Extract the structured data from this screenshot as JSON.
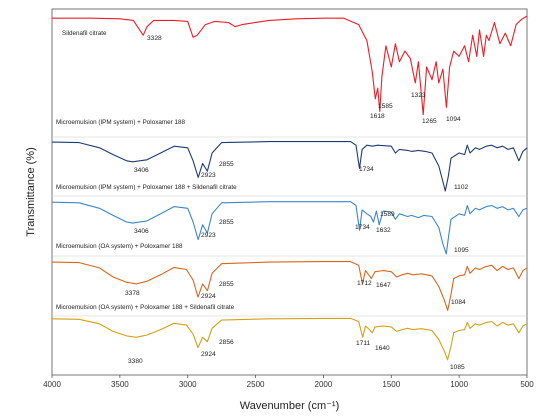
{
  "chart_data": {
    "type": "line",
    "xlabel": "Wavenumber (cm⁻¹)",
    "ylabel": "Transmittance (%)",
    "xlim": [
      4000,
      500
    ],
    "x_reversed": true,
    "x_ticks": [
      "4000",
      "3500",
      "3000",
      "2500",
      "2000",
      "1500",
      "1000",
      "500"
    ],
    "y_ticks_shown": false,
    "grid": false,
    "stacked_offset_spectra": true,
    "series": [
      {
        "name": "Sildenafil citrate",
        "color": "#ee1c25",
        "peaks": [
          "3328",
          "1618",
          "1585",
          "1323",
          "1265",
          "1094"
        ],
        "points": [
          [
            4000,
            0.96
          ],
          [
            3700,
            0.96
          ],
          [
            3500,
            0.955
          ],
          [
            3400,
            0.94
          ],
          [
            3360,
            0.86
          ],
          [
            3328,
            0.8
          ],
          [
            3300,
            0.88
          ],
          [
            3250,
            0.94
          ],
          [
            3100,
            0.94
          ],
          [
            3000,
            0.93
          ],
          [
            2960,
            0.78
          ],
          [
            2930,
            0.8
          ],
          [
            2870,
            0.9
          ],
          [
            2800,
            0.93
          ],
          [
            2700,
            0.92
          ],
          [
            2650,
            0.88
          ],
          [
            2600,
            0.9
          ],
          [
            2400,
            0.94
          ],
          [
            2200,
            0.955
          ],
          [
            2000,
            0.96
          ],
          [
            1850,
            0.96
          ],
          [
            1740,
            0.9
          ],
          [
            1700,
            0.8
          ],
          [
            1680,
            0.75
          ],
          [
            1660,
            0.6
          ],
          [
            1640,
            0.45
          ],
          [
            1618,
            0.2
          ],
          [
            1600,
            0.3
          ],
          [
            1585,
            0.08
          ],
          [
            1570,
            0.4
          ],
          [
            1540,
            0.7
          ],
          [
            1500,
            0.5
          ],
          [
            1470,
            0.72
          ],
          [
            1440,
            0.55
          ],
          [
            1400,
            0.65
          ],
          [
            1360,
            0.58
          ],
          [
            1323,
            0.35
          ],
          [
            1300,
            0.55
          ],
          [
            1265,
            0.05
          ],
          [
            1240,
            0.5
          ],
          [
            1200,
            0.38
          ],
          [
            1170,
            0.55
          ],
          [
            1150,
            0.35
          ],
          [
            1120,
            0.48
          ],
          [
            1094,
            0.12
          ],
          [
            1070,
            0.5
          ],
          [
            1040,
            0.65
          ],
          [
            1000,
            0.6
          ],
          [
            960,
            0.7
          ],
          [
            930,
            0.55
          ],
          [
            900,
            0.8
          ],
          [
            870,
            0.6
          ],
          [
            850,
            0.85
          ],
          [
            820,
            0.6
          ],
          [
            800,
            0.8
          ],
          [
            780,
            0.75
          ],
          [
            740,
            0.92
          ],
          [
            700,
            0.72
          ],
          [
            660,
            0.82
          ],
          [
            620,
            0.7
          ],
          [
            580,
            0.9
          ],
          [
            540,
            0.95
          ],
          [
            500,
            0.98
          ]
        ]
      },
      {
        "name": "Microemulsion (IPM system) + Poloxamer 188",
        "color": "#1f3b73",
        "peaks": [
          "3406",
          "2923",
          "2855",
          "1734",
          "1102"
        ],
        "points": [
          [
            4000,
            0.96
          ],
          [
            3800,
            0.95
          ],
          [
            3650,
            0.85
          ],
          [
            3550,
            0.72
          ],
          [
            3450,
            0.6
          ],
          [
            3406,
            0.58
          ],
          [
            3300,
            0.62
          ],
          [
            3200,
            0.75
          ],
          [
            3100,
            0.88
          ],
          [
            3000,
            0.85
          ],
          [
            2960,
            0.6
          ],
          [
            2923,
            0.28
          ],
          [
            2890,
            0.55
          ],
          [
            2855,
            0.4
          ],
          [
            2820,
            0.75
          ],
          [
            2750,
            0.95
          ],
          [
            2400,
            0.97
          ],
          [
            2000,
            0.97
          ],
          [
            1800,
            0.97
          ],
          [
            1760,
            0.9
          ],
          [
            1734,
            0.45
          ],
          [
            1715,
            0.82
          ],
          [
            1680,
            0.9
          ],
          [
            1640,
            0.88
          ],
          [
            1600,
            0.9
          ],
          [
            1500,
            0.88
          ],
          [
            1470,
            0.75
          ],
          [
            1440,
            0.82
          ],
          [
            1380,
            0.8
          ],
          [
            1350,
            0.78
          ],
          [
            1300,
            0.8
          ],
          [
            1250,
            0.78
          ],
          [
            1200,
            0.75
          ],
          [
            1150,
            0.5
          ],
          [
            1120,
            0.2
          ],
          [
            1102,
            0.02
          ],
          [
            1080,
            0.3
          ],
          [
            1060,
            0.65
          ],
          [
            1000,
            0.75
          ],
          [
            960,
            0.72
          ],
          [
            940,
            0.9
          ],
          [
            920,
            0.75
          ],
          [
            880,
            0.85
          ],
          [
            850,
            0.82
          ],
          [
            800,
            0.88
          ],
          [
            760,
            0.9
          ],
          [
            720,
            0.85
          ],
          [
            680,
            0.88
          ],
          [
            640,
            0.82
          ],
          [
            600,
            0.85
          ],
          [
            560,
            0.6
          ],
          [
            530,
            0.78
          ],
          [
            500,
            0.85
          ]
        ]
      },
      {
        "name": "Microemulsion (IPM system) + Poloxamer 188 + Sildenafil citrate",
        "color": "#3f86c8",
        "peaks": [
          "3406",
          "2923",
          "2855",
          "1734",
          "1632",
          "1589",
          "1095"
        ],
        "points": [
          [
            4000,
            0.96
          ],
          [
            3800,
            0.95
          ],
          [
            3650,
            0.85
          ],
          [
            3550,
            0.72
          ],
          [
            3450,
            0.6
          ],
          [
            3406,
            0.58
          ],
          [
            3300,
            0.62
          ],
          [
            3200,
            0.75
          ],
          [
            3100,
            0.88
          ],
          [
            3000,
            0.85
          ],
          [
            2960,
            0.6
          ],
          [
            2923,
            0.28
          ],
          [
            2890,
            0.55
          ],
          [
            2855,
            0.4
          ],
          [
            2820,
            0.75
          ],
          [
            2750,
            0.95
          ],
          [
            2400,
            0.97
          ],
          [
            2000,
            0.97
          ],
          [
            1800,
            0.97
          ],
          [
            1760,
            0.9
          ],
          [
            1734,
            0.45
          ],
          [
            1715,
            0.82
          ],
          [
            1680,
            0.75
          ],
          [
            1650,
            0.7
          ],
          [
            1632,
            0.6
          ],
          [
            1610,
            0.8
          ],
          [
            1589,
            0.55
          ],
          [
            1560,
            0.8
          ],
          [
            1500,
            0.78
          ],
          [
            1470,
            0.65
          ],
          [
            1440,
            0.75
          ],
          [
            1380,
            0.7
          ],
          [
            1350,
            0.72
          ],
          [
            1300,
            0.68
          ],
          [
            1260,
            0.72
          ],
          [
            1200,
            0.7
          ],
          [
            1150,
            0.5
          ],
          [
            1120,
            0.2
          ],
          [
            1095,
            0.02
          ],
          [
            1080,
            0.3
          ],
          [
            1060,
            0.65
          ],
          [
            1000,
            0.75
          ],
          [
            960,
            0.72
          ],
          [
            940,
            0.9
          ],
          [
            920,
            0.75
          ],
          [
            880,
            0.85
          ],
          [
            850,
            0.82
          ],
          [
            800,
            0.88
          ],
          [
            760,
            0.9
          ],
          [
            720,
            0.85
          ],
          [
            680,
            0.88
          ],
          [
            640,
            0.82
          ],
          [
            600,
            0.85
          ],
          [
            560,
            0.7
          ],
          [
            530,
            0.82
          ],
          [
            500,
            0.85
          ]
        ]
      },
      {
        "name": "Microemulsion (OA system) + Poloxamer 188",
        "color": "#d9661f",
        "peaks": [
          "3378",
          "2924",
          "2855",
          "1712",
          "1647",
          "1084"
        ],
        "points": [
          [
            4000,
            0.96
          ],
          [
            3800,
            0.95
          ],
          [
            3650,
            0.85
          ],
          [
            3550,
            0.68
          ],
          [
            3450,
            0.58
          ],
          [
            3378,
            0.55
          ],
          [
            3300,
            0.6
          ],
          [
            3200,
            0.72
          ],
          [
            3100,
            0.86
          ],
          [
            3010,
            0.82
          ],
          [
            2960,
            0.62
          ],
          [
            2924,
            0.3
          ],
          [
            2890,
            0.55
          ],
          [
            2855,
            0.42
          ],
          [
            2820,
            0.75
          ],
          [
            2750,
            0.93
          ],
          [
            2400,
            0.96
          ],
          [
            2000,
            0.97
          ],
          [
            1800,
            0.97
          ],
          [
            1740,
            0.9
          ],
          [
            1712,
            0.55
          ],
          [
            1690,
            0.8
          ],
          [
            1660,
            0.7
          ],
          [
            1647,
            0.65
          ],
          [
            1620,
            0.78
          ],
          [
            1560,
            0.8
          ],
          [
            1500,
            0.78
          ],
          [
            1460,
            0.68
          ],
          [
            1420,
            0.72
          ],
          [
            1380,
            0.75
          ],
          [
            1340,
            0.72
          ],
          [
            1280,
            0.74
          ],
          [
            1240,
            0.72
          ],
          [
            1200,
            0.7
          ],
          [
            1150,
            0.5
          ],
          [
            1110,
            0.25
          ],
          [
            1084,
            0.05
          ],
          [
            1060,
            0.35
          ],
          [
            1040,
            0.65
          ],
          [
            1000,
            0.7
          ],
          [
            960,
            0.72
          ],
          [
            940,
            0.88
          ],
          [
            920,
            0.75
          ],
          [
            880,
            0.85
          ],
          [
            850,
            0.82
          ],
          [
            800,
            0.88
          ],
          [
            760,
            0.9
          ],
          [
            720,
            0.8
          ],
          [
            680,
            0.88
          ],
          [
            640,
            0.82
          ],
          [
            600,
            0.85
          ],
          [
            560,
            0.65
          ],
          [
            530,
            0.8
          ],
          [
            500,
            0.85
          ]
        ]
      },
      {
        "name": "Microemulsion (OA system) + Poloxamer 188 + Sildenafil citrate",
        "color": "#d4a017",
        "peaks": [
          "3380",
          "2924",
          "2856",
          "1711",
          "1640",
          "1085"
        ],
        "points": [
          [
            4000,
            0.96
          ],
          [
            3800,
            0.95
          ],
          [
            3650,
            0.85
          ],
          [
            3550,
            0.68
          ],
          [
            3450,
            0.58
          ],
          [
            3380,
            0.55
          ],
          [
            3300,
            0.6
          ],
          [
            3200,
            0.72
          ],
          [
            3100,
            0.86
          ],
          [
            3010,
            0.82
          ],
          [
            2960,
            0.62
          ],
          [
            2924,
            0.32
          ],
          [
            2890,
            0.55
          ],
          [
            2856,
            0.45
          ],
          [
            2820,
            0.75
          ],
          [
            2750,
            0.93
          ],
          [
            2400,
            0.96
          ],
          [
            2000,
            0.97
          ],
          [
            1800,
            0.97
          ],
          [
            1740,
            0.9
          ],
          [
            1711,
            0.55
          ],
          [
            1690,
            0.8
          ],
          [
            1660,
            0.72
          ],
          [
            1640,
            0.65
          ],
          [
            1620,
            0.78
          ],
          [
            1560,
            0.8
          ],
          [
            1500,
            0.78
          ],
          [
            1460,
            0.68
          ],
          [
            1420,
            0.72
          ],
          [
            1380,
            0.75
          ],
          [
            1340,
            0.72
          ],
          [
            1280,
            0.74
          ],
          [
            1240,
            0.72
          ],
          [
            1200,
            0.7
          ],
          [
            1150,
            0.5
          ],
          [
            1110,
            0.25
          ],
          [
            1085,
            0.05
          ],
          [
            1060,
            0.35
          ],
          [
            1040,
            0.65
          ],
          [
            1000,
            0.7
          ],
          [
            960,
            0.72
          ],
          [
            940,
            0.88
          ],
          [
            920,
            0.75
          ],
          [
            880,
            0.85
          ],
          [
            850,
            0.82
          ],
          [
            800,
            0.88
          ],
          [
            760,
            0.9
          ],
          [
            720,
            0.8
          ],
          [
            680,
            0.88
          ],
          [
            640,
            0.82
          ],
          [
            600,
            0.85
          ],
          [
            560,
            0.65
          ],
          [
            530,
            0.8
          ],
          [
            500,
            0.85
          ]
        ]
      }
    ]
  }
}
